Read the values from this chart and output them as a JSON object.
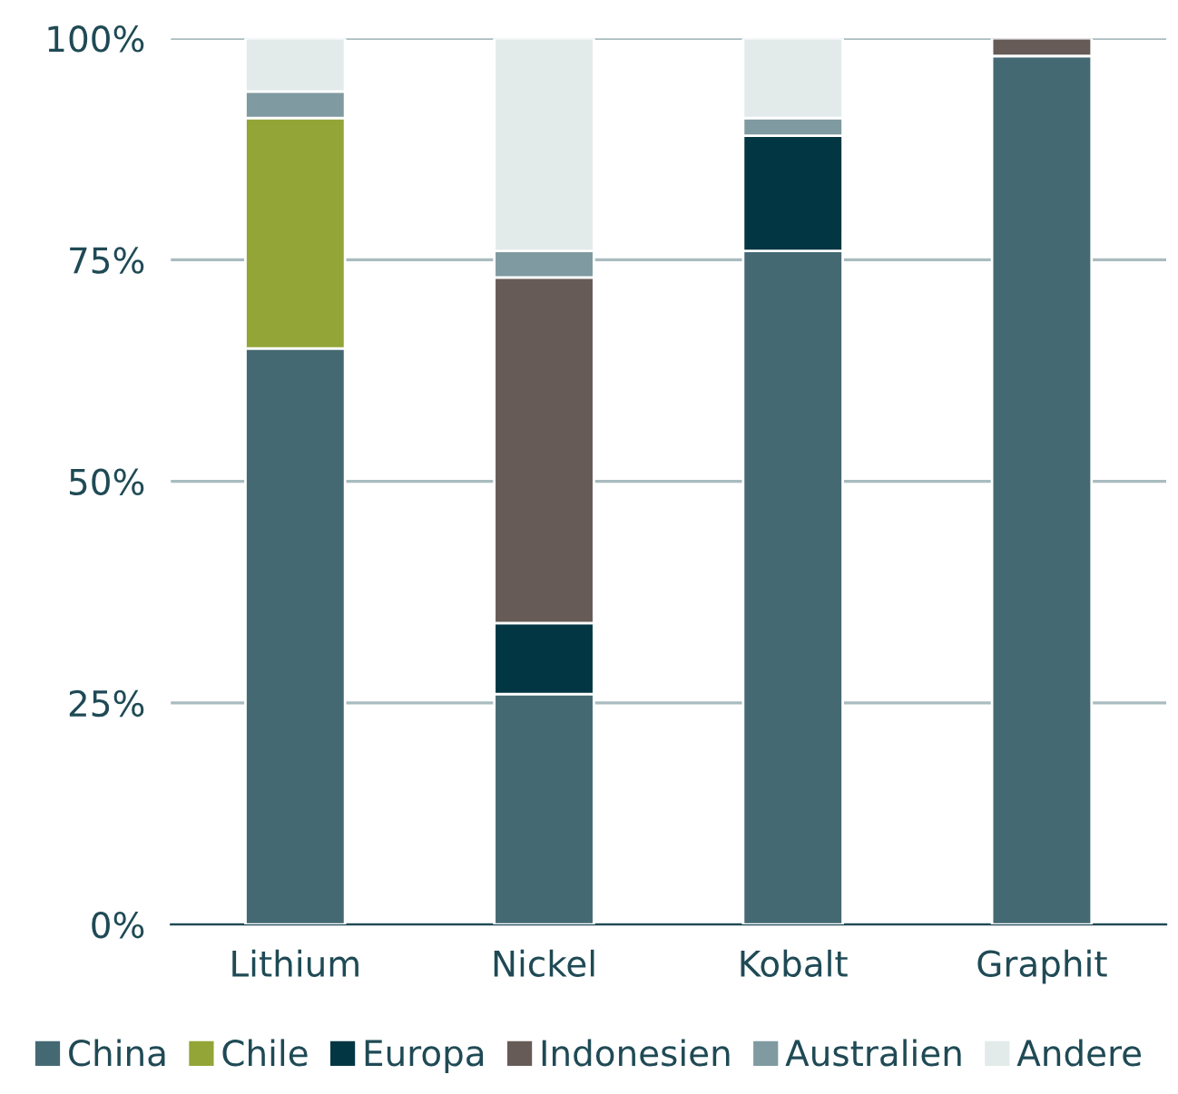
{
  "chart_data": {
    "type": "bar",
    "stacked": true,
    "categories": [
      "Lithium",
      "Nickel",
      "Kobalt",
      "Graphit"
    ],
    "series": [
      {
        "name": "China",
        "color": "#446973",
        "values": [
          65,
          26,
          76,
          98
        ]
      },
      {
        "name": "Chile",
        "color": "#92a536",
        "values": [
          26,
          null,
          null,
          null
        ]
      },
      {
        "name": "Europa",
        "color": "#023642",
        "values": [
          null,
          8,
          13,
          null
        ]
      },
      {
        "name": "Indonesien",
        "color": "#665b57",
        "values": [
          null,
          39,
          null,
          2
        ]
      },
      {
        "name": "Australien",
        "color": "#7f9aa0",
        "values": [
          3,
          3,
          2,
          null
        ]
      },
      {
        "name": "Andere",
        "color": "#e3eaea",
        "values": [
          6,
          24,
          9,
          null
        ]
      }
    ],
    "ylim": [
      0,
      100
    ],
    "yticks": [
      {
        "value": 0,
        "label": "0%"
      },
      {
        "value": 25,
        "label": "25%"
      },
      {
        "value": 50,
        "label": "50%"
      },
      {
        "value": 75,
        "label": "75%"
      },
      {
        "value": 100,
        "label": "100%"
      }
    ],
    "grid": "y",
    "legend": "bottom"
  }
}
